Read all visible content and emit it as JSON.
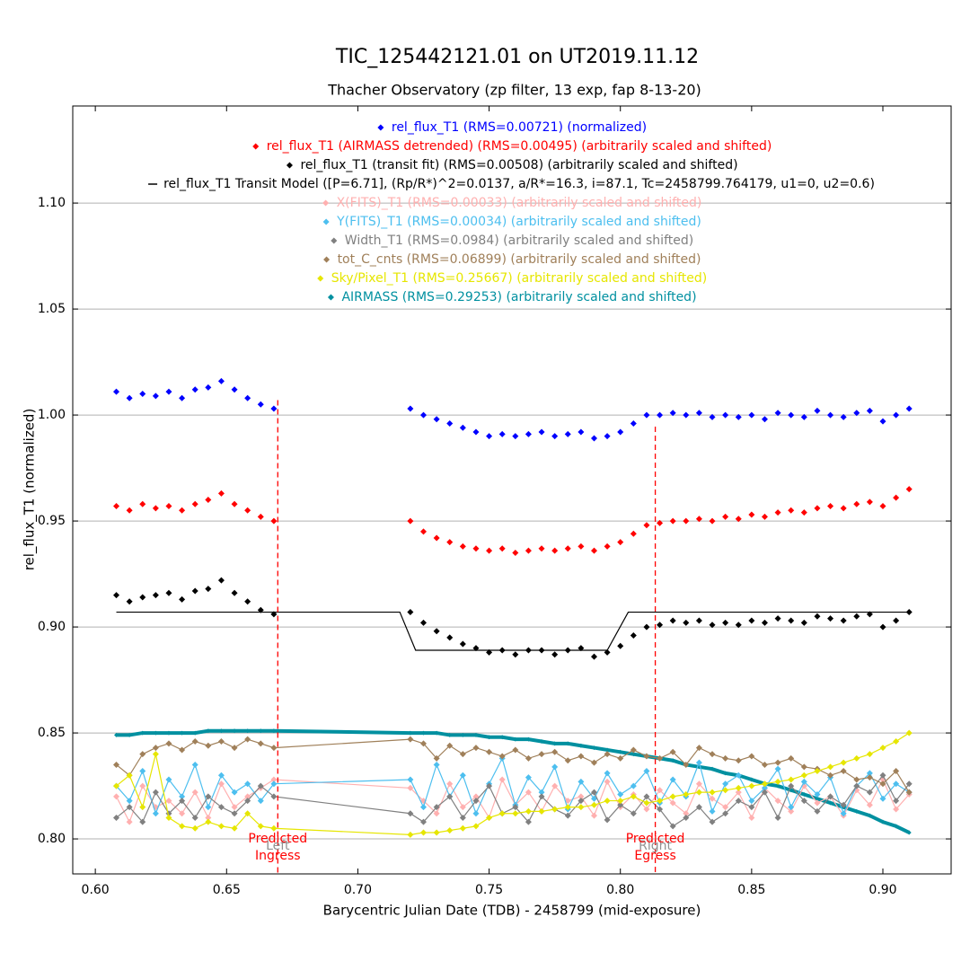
{
  "chart_data": {
    "type": "scatter",
    "title": "TIC_125442121.01 on UT2019.11.12",
    "subtitle": "Thacher Observatory (zp filter, 13 exp, fap 8-13-20)",
    "xlabel": "Barycentric Julian Date (TDB) - 2458799 (mid-exposure)",
    "ylabel": "rel_flux_T1 (normalized)",
    "xlim": [
      0.5914,
      0.926
    ],
    "ylim": [
      0.7835,
      1.1458
    ],
    "xticks": [
      {
        "value": 0.6,
        "label": "0.60"
      },
      0.65,
      {
        "value": 0.7,
        "label": "0.70"
      },
      0.75,
      {
        "value": 0.8,
        "label": "0.80"
      },
      0.85,
      {
        "value": 0.9,
        "label": "0.90"
      }
    ],
    "yticks": [
      {
        "value": 0.8,
        "label": "0.80"
      },
      0.85,
      {
        "value": 0.9,
        "label": "0.90"
      },
      0.95,
      {
        "value": 1.0,
        "label": "1.00"
      },
      1.05,
      {
        "value": 1.1,
        "label": "1.10"
      }
    ],
    "grid": true,
    "x": [
      0.608,
      0.613,
      0.618,
      0.623,
      0.628,
      0.633,
      0.638,
      0.643,
      0.648,
      0.653,
      0.658,
      0.663,
      0.668,
      0.72,
      0.725,
      0.73,
      0.735,
      0.74,
      0.745,
      0.75,
      0.755,
      0.76,
      0.765,
      0.77,
      0.775,
      0.78,
      0.785,
      0.79,
      0.795,
      0.8,
      0.805,
      0.81,
      0.815,
      0.82,
      0.825,
      0.83,
      0.835,
      0.84,
      0.845,
      0.85,
      0.855,
      0.86,
      0.865,
      0.87,
      0.875,
      0.88,
      0.885,
      0.89,
      0.895,
      0.9,
      0.905,
      0.91
    ],
    "series": [
      {
        "name": "rel_flux_T1 (RMS=0.00721) (normalized)",
        "color": "#0000ff",
        "style": "points",
        "values": [
          1.011,
          1.008,
          1.01,
          1.009,
          1.011,
          1.008,
          1.012,
          1.013,
          1.016,
          1.012,
          1.008,
          1.005,
          1.003,
          1.003,
          1.0,
          0.998,
          0.996,
          0.994,
          0.992,
          0.99,
          0.991,
          0.99,
          0.991,
          0.992,
          0.99,
          0.991,
          0.992,
          0.989,
          0.99,
          0.992,
          0.996,
          1.0,
          1.0,
          1.001,
          1.0,
          1.001,
          0.999,
          1.0,
          0.999,
          1.0,
          0.998,
          1.001,
          1.0,
          0.999,
          1.002,
          1.0,
          0.999,
          1.001,
          1.002,
          0.997,
          1.0,
          1.003
        ]
      },
      {
        "name": "rel_flux_T1 (AIRMASS detrended) (RMS=0.00495) (arbitrarily scaled and shifted)",
        "color": "#ff0000",
        "style": "points",
        "values": [
          0.957,
          0.955,
          0.958,
          0.956,
          0.957,
          0.955,
          0.958,
          0.96,
          0.963,
          0.958,
          0.955,
          0.952,
          0.95,
          0.95,
          0.945,
          0.942,
          0.94,
          0.938,
          0.937,
          0.936,
          0.937,
          0.935,
          0.936,
          0.937,
          0.936,
          0.937,
          0.938,
          0.936,
          0.938,
          0.94,
          0.944,
          0.948,
          0.949,
          0.95,
          0.95,
          0.951,
          0.95,
          0.952,
          0.951,
          0.953,
          0.952,
          0.954,
          0.955,
          0.954,
          0.956,
          0.957,
          0.956,
          0.958,
          0.959,
          0.957,
          0.961,
          0.965
        ]
      },
      {
        "name": "rel_flux_T1 (transit fit) (RMS=0.00508) (arbitrarily scaled and shifted)",
        "color": "#000000",
        "style": "points",
        "values": [
          0.915,
          0.912,
          0.914,
          0.915,
          0.916,
          0.913,
          0.917,
          0.918,
          0.922,
          0.916,
          0.912,
          0.908,
          0.906,
          0.907,
          0.902,
          0.898,
          0.895,
          0.892,
          0.89,
          0.888,
          0.889,
          0.887,
          0.889,
          0.889,
          0.887,
          0.889,
          0.89,
          0.886,
          0.888,
          0.891,
          0.896,
          0.9,
          0.901,
          0.903,
          0.902,
          0.903,
          0.901,
          0.902,
          0.901,
          0.903,
          0.902,
          0.904,
          0.903,
          0.902,
          0.905,
          0.904,
          0.903,
          0.905,
          0.906,
          0.9,
          0.903,
          0.907
        ]
      },
      {
        "name": "rel_flux_T1 Transit Model ([P=6.71], (Rp/R*)^2=0.0137, a/R*=16.3, i=87.1, Tc=2458799.764179, u1=0, u2=0.6)",
        "color": "#000000",
        "style": "line",
        "x": [
          0.608,
          0.716,
          0.722,
          0.795,
          0.803,
          0.91
        ],
        "values": [
          0.907,
          0.907,
          0.889,
          0.889,
          0.907,
          0.907
        ]
      },
      {
        "name": "X(FITS)_T1 (RMS=0.00033) (arbitrarily scaled and shifted)",
        "color": "#ffb0b0",
        "style": "points-line",
        "values": [
          0.82,
          0.808,
          0.825,
          0.815,
          0.818,
          0.812,
          0.822,
          0.81,
          0.826,
          0.815,
          0.82,
          0.824,
          0.828,
          0.824,
          0.818,
          0.812,
          0.826,
          0.815,
          0.82,
          0.81,
          0.828,
          0.816,
          0.822,
          0.813,
          0.825,
          0.818,
          0.82,
          0.811,
          0.827,
          0.815,
          0.821,
          0.814,
          0.823,
          0.817,
          0.812,
          0.826,
          0.819,
          0.815,
          0.822,
          0.81,
          0.824,
          0.818,
          0.813,
          0.825,
          0.817,
          0.82,
          0.811,
          0.823,
          0.816,
          0.828,
          0.814,
          0.821
        ]
      },
      {
        "name": "Y(FITS)_T1 (RMS=0.00034) (arbitrarily scaled and shifted)",
        "color": "#4dbfef",
        "style": "points-line",
        "values": [
          0.825,
          0.818,
          0.832,
          0.812,
          0.828,
          0.82,
          0.835,
          0.815,
          0.83,
          0.822,
          0.826,
          0.818,
          0.826,
          0.828,
          0.815,
          0.835,
          0.82,
          0.83,
          0.812,
          0.826,
          0.838,
          0.816,
          0.829,
          0.822,
          0.834,
          0.814,
          0.827,
          0.819,
          0.831,
          0.821,
          0.825,
          0.832,
          0.817,
          0.828,
          0.82,
          0.836,
          0.813,
          0.826,
          0.83,
          0.818,
          0.824,
          0.833,
          0.815,
          0.827,
          0.821,
          0.829,
          0.812,
          0.825,
          0.831,
          0.819,
          0.826,
          0.822
        ]
      },
      {
        "name": "Width_T1 (RMS=0.0984) (arbitrarily scaled and shifted)",
        "color": "#808080",
        "style": "points-line",
        "values": [
          0.81,
          0.815,
          0.808,
          0.822,
          0.812,
          0.818,
          0.81,
          0.82,
          0.815,
          0.812,
          0.818,
          0.825,
          0.82,
          0.812,
          0.808,
          0.815,
          0.82,
          0.81,
          0.818,
          0.825,
          0.812,
          0.815,
          0.808,
          0.82,
          0.814,
          0.811,
          0.818,
          0.822,
          0.809,
          0.816,
          0.812,
          0.82,
          0.814,
          0.806,
          0.81,
          0.815,
          0.808,
          0.812,
          0.818,
          0.815,
          0.822,
          0.81,
          0.825,
          0.818,
          0.813,
          0.82,
          0.816,
          0.825,
          0.822,
          0.83,
          0.818,
          0.826
        ]
      },
      {
        "name": "tot_C_cnts (RMS=0.06899) (arbitrarily scaled and shifted)",
        "color": "#a0805a",
        "style": "points-line",
        "values": [
          0.835,
          0.83,
          0.84,
          0.843,
          0.845,
          0.842,
          0.846,
          0.844,
          0.846,
          0.843,
          0.847,
          0.845,
          0.843,
          0.847,
          0.845,
          0.838,
          0.844,
          0.84,
          0.843,
          0.841,
          0.839,
          0.842,
          0.838,
          0.84,
          0.841,
          0.837,
          0.839,
          0.836,
          0.84,
          0.838,
          0.842,
          0.839,
          0.838,
          0.841,
          0.835,
          0.843,
          0.84,
          0.838,
          0.837,
          0.839,
          0.835,
          0.836,
          0.838,
          0.834,
          0.833,
          0.83,
          0.832,
          0.828,
          0.829,
          0.826,
          0.832,
          0.822
        ]
      },
      {
        "name": "Sky/Pixel_T1 (RMS=0.25667) (arbitrarily scaled and shifted)",
        "color": "#e6e600",
        "style": "points-line",
        "values": [
          0.825,
          0.83,
          0.815,
          0.84,
          0.81,
          0.806,
          0.805,
          0.808,
          0.806,
          0.805,
          0.812,
          0.806,
          0.805,
          0.802,
          0.803,
          0.803,
          0.804,
          0.805,
          0.806,
          0.81,
          0.812,
          0.812,
          0.813,
          0.813,
          0.814,
          0.815,
          0.815,
          0.816,
          0.818,
          0.818,
          0.82,
          0.817,
          0.818,
          0.82,
          0.821,
          0.822,
          0.822,
          0.823,
          0.824,
          0.825,
          0.826,
          0.827,
          0.828,
          0.83,
          0.832,
          0.834,
          0.836,
          0.838,
          0.84,
          0.843,
          0.846,
          0.85
        ]
      },
      {
        "name": "AIRMASS (RMS=0.29253) (arbitrarily scaled and shifted)",
        "color": "#0090a0",
        "style": "thick-line",
        "values": [
          0.849,
          0.849,
          0.85,
          0.85,
          0.85,
          0.85,
          0.85,
          0.851,
          0.851,
          0.851,
          0.851,
          0.851,
          0.851,
          0.85,
          0.85,
          0.85,
          0.849,
          0.849,
          0.849,
          0.848,
          0.848,
          0.847,
          0.847,
          0.846,
          0.845,
          0.845,
          0.844,
          0.843,
          0.842,
          0.841,
          0.84,
          0.839,
          0.838,
          0.837,
          0.835,
          0.834,
          0.833,
          0.831,
          0.83,
          0.828,
          0.826,
          0.825,
          0.823,
          0.821,
          0.819,
          0.817,
          0.815,
          0.813,
          0.811,
          0.808,
          0.806,
          0.803
        ]
      }
    ],
    "markers": [
      {
        "x": 0.6695,
        "top": 1.007,
        "label": [
          "Predicted",
          "Ingress"
        ],
        "side": "Left"
      },
      {
        "x": 0.8133,
        "top": 0.9945,
        "label": [
          "Predicted",
          "Egress"
        ],
        "side": "Right"
      }
    ]
  }
}
